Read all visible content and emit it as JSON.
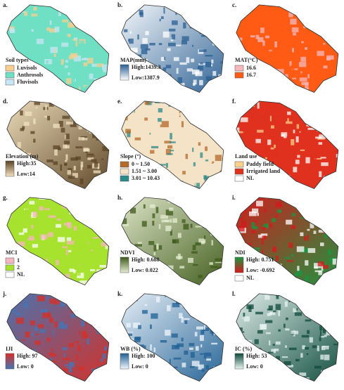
{
  "panels": [
    {
      "label": "a.",
      "legend": {
        "kind": "items",
        "title": "Soil types",
        "items": [
          {
            "label": "Luvisols",
            "color": "#f9cf8f"
          },
          {
            "label": "Anthrosols",
            "color": "#6fe0c4"
          },
          {
            "label": "Fluvisols",
            "color": "#c8e6f5"
          }
        ]
      }
    },
    {
      "label": "b.",
      "legend": {
        "kind": "gradient",
        "title": "MAP(mm)",
        "high": "High:1439.3",
        "low": "Low:1387.9",
        "high_color": "#2a5f93",
        "low_color": "#ffffff"
      }
    },
    {
      "label": "c.",
      "legend": {
        "kind": "items",
        "title": "MAT(°C)",
        "items": [
          {
            "label": "16.6",
            "color": "#f7b8bd"
          },
          {
            "label": "16.7",
            "color": "#ff5b14"
          }
        ]
      }
    },
    {
      "label": "d.",
      "legend": {
        "kind": "gradient",
        "title": "Elevation (m)",
        "high": "High:35",
        "low": "Low:14",
        "high_color": "#5b4324",
        "low_color": "#f2e2c0"
      }
    },
    {
      "label": "e.",
      "legend": {
        "kind": "items",
        "title": "Slope (°)",
        "items": [
          {
            "label": "0 ~ 1.50",
            "color": "#b36a2b"
          },
          {
            "label": "1.51 ~ 3.00",
            "color": "#f4e3c6"
          },
          {
            "label": "3.01 ~ 10.43",
            "color": "#2b8a8a"
          }
        ]
      }
    },
    {
      "label": "f.",
      "legend": {
        "kind": "items",
        "title": "Land use",
        "items": [
          {
            "label": "Paddy field",
            "color": "#fbd08a"
          },
          {
            "label": "Irrigated land",
            "color": "#e0301e"
          },
          {
            "label": "NL",
            "color": "#ffffff"
          }
        ]
      }
    },
    {
      "label": "g.",
      "legend": {
        "kind": "items",
        "title": "MCI",
        "items": [
          {
            "label": "1",
            "color": "#f6b6c0"
          },
          {
            "label": "2",
            "color": "#a6e22e"
          },
          {
            "label": "NL",
            "color": "#ffffff"
          }
        ]
      }
    },
    {
      "label": "h.",
      "legend": {
        "kind": "gradient",
        "title": "NDVI",
        "high": "High: 0.688",
        "low": "Low:  0.022",
        "high_color": "#3e5a1a",
        "low_color": "#e5ecd0"
      }
    },
    {
      "label": "i.",
      "legend": {
        "kind": "gradient",
        "title": "NDI",
        "high": "High: 0.751",
        "low": "Low:  -0.692",
        "high_color": "#1a9641",
        "low_color": "#d7191c",
        "extra": {
          "label": "NL",
          "color": "#ffffff"
        }
      }
    },
    {
      "label": "j.",
      "legend": {
        "kind": "gradient",
        "title": "IJI",
        "high": "High: 97",
        "low": "Low:  0",
        "high_color": "#d73027",
        "low_color": "#4575b4"
      }
    },
    {
      "label": "k.",
      "legend": {
        "kind": "gradient",
        "title": "WB (%)",
        "high": "High: 100",
        "low": "Low:  0",
        "high_color": "#1f5f93",
        "low_color": "#f0f6fb"
      }
    },
    {
      "label": "l.",
      "legend": {
        "kind": "gradient",
        "title": "IC (%)",
        "high": "High: 53",
        "low": "Low:  0",
        "high_color": "#0d4a3b",
        "low_color": "#e8f4f0"
      }
    }
  ]
}
